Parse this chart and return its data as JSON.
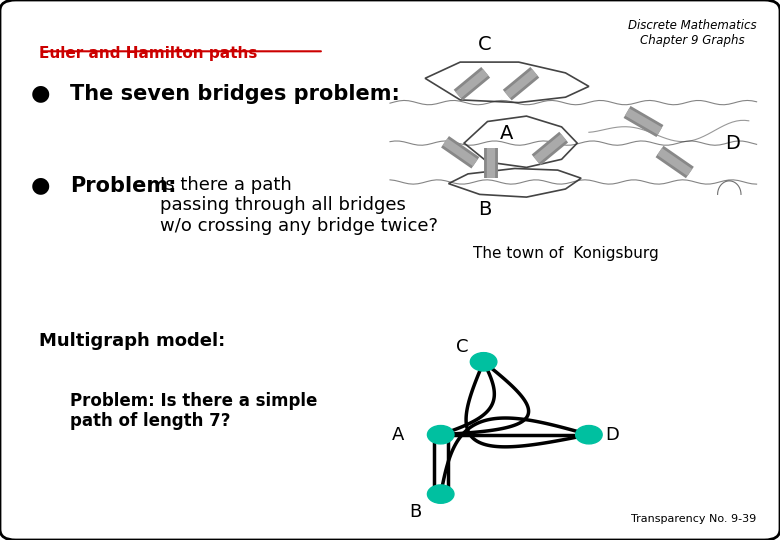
{
  "title_top_right": "Discrete Mathematics\nChapter 9 Graphs",
  "subtitle": "Euler and Hamilton paths",
  "bullet1": "The seven bridges problem:",
  "bullet2_bold": "Problem:",
  "bullet2_rest": " Is there a path\npassing through all bridges\nw/o crossing any bridge twice?",
  "caption": "The town of  Konigsburg",
  "section2": "Multigraph model:",
  "problem2": "Problem: Is there a simple\npath of length 7?",
  "transparency": "Transparency No. 9-39",
  "bg_color": "#ffffff",
  "border_color": "#000000",
  "subtitle_color": "#cc0000",
  "text_color": "#000000",
  "node_color": "#00c0a0",
  "bridge_color": "#888888",
  "bridge_highlight": "#aaaaaa"
}
